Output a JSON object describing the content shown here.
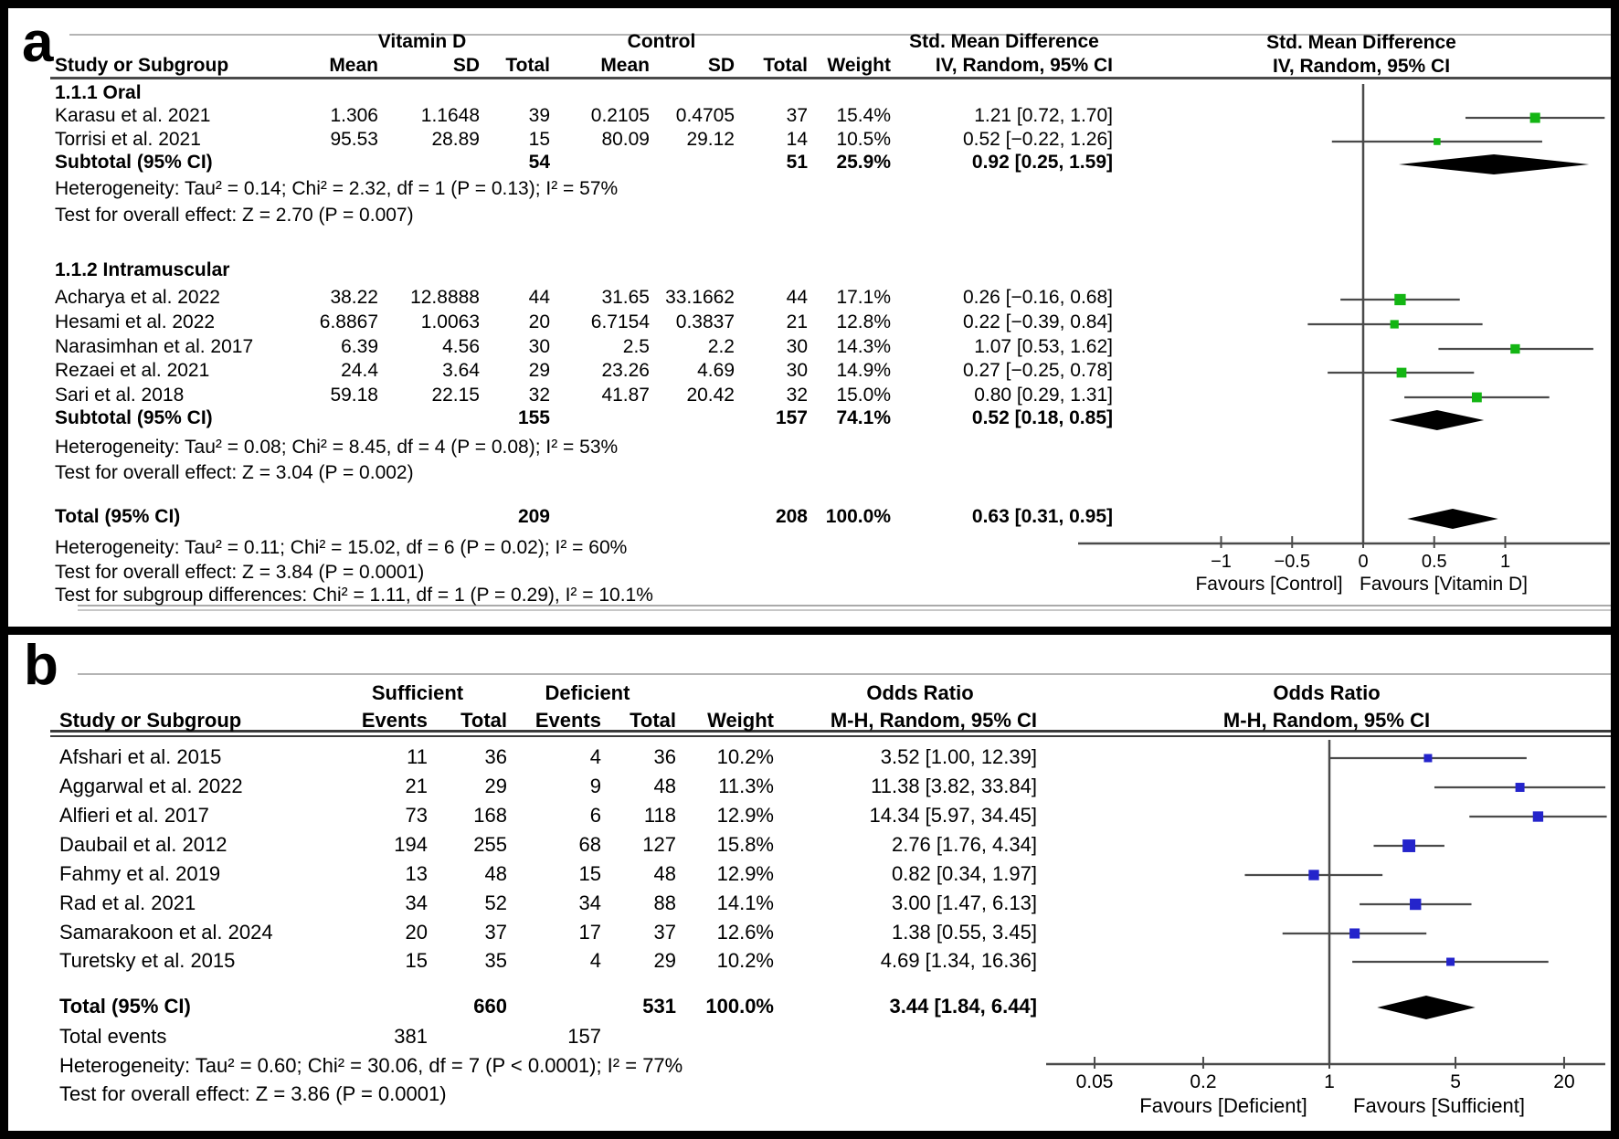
{
  "panel_a": {
    "label": "a",
    "group_headers": [
      "Vitamin D",
      "Control",
      "Std. Mean Difference"
    ],
    "col_headers": [
      "Study or Subgroup",
      "Mean",
      "SD",
      "Total",
      "Mean",
      "SD",
      "Total",
      "Weight",
      "IV, Random, 95% CI"
    ],
    "plot_header": {
      "line1": "Std. Mean Difference",
      "line2": "IV, Random, 95% CI"
    },
    "rows": [
      {
        "type": "group",
        "cells": [
          "1.1.1 Oral"
        ]
      },
      {
        "type": "study",
        "cells": [
          "Karasu et al. 2021",
          "1.306",
          "1.1648",
          "39",
          "0.2105",
          "0.4705",
          "37",
          "15.4%",
          "1.21 [0.72, 1.70]"
        ]
      },
      {
        "type": "study",
        "cells": [
          "Torrisi et al. 2021",
          "95.53",
          "28.89",
          "15",
          "80.09",
          "29.12",
          "14",
          "10.5%",
          "0.52 [−0.22, 1.26]"
        ]
      },
      {
        "type": "subtotal",
        "cells": [
          "Subtotal (95% CI)",
          "",
          "",
          "54",
          "",
          "",
          "51",
          "25.9%",
          "0.92 [0.25, 1.59]"
        ]
      },
      {
        "type": "note",
        "cells": [
          "Heterogeneity: Tau² = 0.14; Chi² = 2.32, df = 1 (P = 0.13); I² = 57%"
        ]
      },
      {
        "type": "note",
        "cells": [
          "Test for overall effect: Z = 2.70 (P = 0.007)"
        ]
      },
      {
        "type": "group",
        "cells": [
          "1.1.2 Intramuscular"
        ]
      },
      {
        "type": "study",
        "cells": [
          "Acharya et al. 2022",
          "38.22",
          "12.8888",
          "44",
          "31.65",
          "33.1662",
          "44",
          "17.1%",
          "0.26 [−0.16, 0.68]"
        ]
      },
      {
        "type": "study",
        "cells": [
          "Hesami et al. 2022",
          "6.8867",
          "1.0063",
          "20",
          "6.7154",
          "0.3837",
          "21",
          "12.8%",
          "0.22 [−0.39, 0.84]"
        ]
      },
      {
        "type": "study",
        "cells": [
          "Narasimhan et al. 2017",
          "6.39",
          "4.56",
          "30",
          "2.5",
          "2.2",
          "30",
          "14.3%",
          "1.07 [0.53, 1.62]"
        ]
      },
      {
        "type": "study",
        "cells": [
          "Rezaei et al. 2021",
          "24.4",
          "3.64",
          "29",
          "23.26",
          "4.69",
          "30",
          "14.9%",
          "0.27 [−0.25, 0.78]"
        ]
      },
      {
        "type": "study",
        "cells": [
          "Sari et al. 2018",
          "59.18",
          "22.15",
          "32",
          "41.87",
          "20.42",
          "32",
          "15.0%",
          "0.80 [0.29, 1.31]"
        ]
      },
      {
        "type": "subtotal",
        "cells": [
          "Subtotal (95% CI)",
          "",
          "",
          "155",
          "",
          "",
          "157",
          "74.1%",
          "0.52 [0.18, 0.85]"
        ]
      },
      {
        "type": "note",
        "cells": [
          "Heterogeneity: Tau² = 0.08; Chi² = 8.45, df = 4 (P = 0.08); I² = 53%"
        ]
      },
      {
        "type": "note",
        "cells": [
          "Test for overall effect: Z = 3.04 (P = 0.002)"
        ]
      },
      {
        "type": "total",
        "cells": [
          "Total (95% CI)",
          "",
          "",
          "209",
          "",
          "",
          "208",
          "100.0%",
          "0.63 [0.31, 0.95]"
        ]
      },
      {
        "type": "note",
        "cells": [
          "Heterogeneity: Tau² = 0.11; Chi² = 15.02, df = 6 (P = 0.02); I² = 60%"
        ]
      },
      {
        "type": "note",
        "cells": [
          "Test for overall effect: Z = 3.84 (P = 0.0001)"
        ]
      },
      {
        "type": "note",
        "cells": [
          "Test for subgroup differences: Chi² = 1.11, df = 1 (P = 0.29), I² = 10.1%"
        ]
      }
    ]
  },
  "panel_b": {
    "label": "b",
    "group_headers": [
      "Sufficient",
      "Deficient",
      "Odds Ratio"
    ],
    "col_headers": [
      "Study or Subgroup",
      "Events",
      "Total",
      "Events",
      "Total",
      "Weight",
      "M-H, Random, 95% CI"
    ],
    "plot_header": {
      "line1": "Odds Ratio",
      "line2": "M-H, Random, 95% CI"
    },
    "rows": [
      {
        "type": "study",
        "cells": [
          "Afshari et al. 2015",
          "11",
          "36",
          "4",
          "36",
          "10.2%",
          "3.52 [1.00, 12.39]"
        ]
      },
      {
        "type": "study",
        "cells": [
          "Aggarwal et al. 2022",
          "21",
          "29",
          "9",
          "48",
          "11.3%",
          "11.38 [3.82, 33.84]"
        ]
      },
      {
        "type": "study",
        "cells": [
          "Alfieri et al. 2017",
          "73",
          "168",
          "6",
          "118",
          "12.9%",
          "14.34 [5.97, 34.45]"
        ]
      },
      {
        "type": "study",
        "cells": [
          "Daubail et al. 2012",
          "194",
          "255",
          "68",
          "127",
          "15.8%",
          "2.76 [1.76, 4.34]"
        ]
      },
      {
        "type": "study",
        "cells": [
          "Fahmy et al. 2019",
          "13",
          "48",
          "15",
          "48",
          "12.9%",
          "0.82 [0.34, 1.97]"
        ]
      },
      {
        "type": "study",
        "cells": [
          "Rad et al. 2021",
          "34",
          "52",
          "34",
          "88",
          "14.1%",
          "3.00 [1.47, 6.13]"
        ]
      },
      {
        "type": "study",
        "cells": [
          "Samarakoon et al. 2024",
          "20",
          "37",
          "17",
          "37",
          "12.6%",
          "1.38 [0.55, 3.45]"
        ]
      },
      {
        "type": "study",
        "cells": [
          "Turetsky et al. 2015",
          "15",
          "35",
          "4",
          "29",
          "10.2%",
          "4.69 [1.34, 16.36]"
        ]
      },
      {
        "type": "total",
        "cells": [
          "Total (95% CI)",
          "",
          "660",
          "",
          "531",
          "100.0%",
          "3.44 [1.84, 6.44]"
        ]
      },
      {
        "type": "note",
        "cells": [
          "Total events",
          "381",
          "",
          "157",
          "",
          "",
          ""
        ]
      },
      {
        "type": "note",
        "cells": [
          "Heterogeneity: Tau² = 0.60; Chi² = 30.06, df = 7 (P < 0.0001); I² = 77%"
        ]
      },
      {
        "type": "note",
        "cells": [
          "Test for overall effect: Z = 3.86 (P = 0.0001)"
        ]
      }
    ]
  },
  "chart_data": [
    {
      "type": "forest",
      "panel": "a",
      "effect_label": "Std. Mean Difference, IV, Random, 95% CI",
      "scale": "linear",
      "xlim": [
        -2.0,
        1.75
      ],
      "axis_ticks": [
        -1,
        -0.5,
        0,
        0.5,
        1
      ],
      "axis_tick_labels": [
        "−1",
        "−0.5",
        "0",
        "0.5",
        "1"
      ],
      "null_value": 0,
      "favours_left": "Favours [Control]",
      "favours_right": "Favours [Vitamin D]",
      "marker_color": "#13b513",
      "groups": [
        {
          "name": "1.1.1 Oral",
          "studies": [
            {
              "label": "Karasu et al. 2021",
              "est": 1.21,
              "lo": 0.72,
              "hi": 1.7,
              "weight": 15.4
            },
            {
              "label": "Torrisi et al. 2021",
              "est": 0.52,
              "lo": -0.22,
              "hi": 1.26,
              "weight": 10.5
            }
          ],
          "subtotal": {
            "est": 0.92,
            "lo": 0.25,
            "hi": 1.59
          }
        },
        {
          "name": "1.1.2 Intramuscular",
          "studies": [
            {
              "label": "Acharya et al. 2022",
              "est": 0.26,
              "lo": -0.16,
              "hi": 0.68,
              "weight": 17.1
            },
            {
              "label": "Hesami et al. 2022",
              "est": 0.22,
              "lo": -0.39,
              "hi": 0.84,
              "weight": 12.8
            },
            {
              "label": "Narasimhan et al. 2017",
              "est": 1.07,
              "lo": 0.53,
              "hi": 1.62,
              "weight": 14.3
            },
            {
              "label": "Rezaei et al. 2021",
              "est": 0.27,
              "lo": -0.25,
              "hi": 0.78,
              "weight": 14.9
            },
            {
              "label": "Sari et al. 2018",
              "est": 0.8,
              "lo": 0.29,
              "hi": 1.31,
              "weight": 15.0
            }
          ],
          "subtotal": {
            "est": 0.52,
            "lo": 0.18,
            "hi": 0.85
          }
        }
      ],
      "total": {
        "est": 0.63,
        "lo": 0.31,
        "hi": 0.95
      }
    },
    {
      "type": "forest",
      "panel": "b",
      "effect_label": "Odds Ratio, M-H, Random, 95% CI",
      "scale": "log",
      "xlim": [
        0.03,
        34
      ],
      "axis_ticks": [
        0.05,
        0.2,
        1,
        5,
        20
      ],
      "axis_tick_labels": [
        "0.05",
        "0.2",
        "1",
        "5",
        "20"
      ],
      "null_value": 1,
      "favours_left": "Favours [Deficient]",
      "favours_right": "Favours [Sufficient]",
      "marker_color": "#2424cb",
      "studies": [
        {
          "label": "Afshari et al. 2015",
          "est": 3.52,
          "lo": 1.0,
          "hi": 12.39,
          "weight": 10.2
        },
        {
          "label": "Aggarwal et al. 2022",
          "est": 11.38,
          "lo": 3.82,
          "hi": 33.84,
          "weight": 11.3
        },
        {
          "label": "Alfieri et al. 2017",
          "est": 14.34,
          "lo": 5.97,
          "hi": 34.45,
          "weight": 12.9
        },
        {
          "label": "Daubail et al. 2012",
          "est": 2.76,
          "lo": 1.76,
          "hi": 4.34,
          "weight": 15.8
        },
        {
          "label": "Fahmy et al. 2019",
          "est": 0.82,
          "lo": 0.34,
          "hi": 1.97,
          "weight": 12.9
        },
        {
          "label": "Rad et al. 2021",
          "est": 3.0,
          "lo": 1.47,
          "hi": 6.13,
          "weight": 14.1
        },
        {
          "label": "Samarakoon et al. 2024",
          "est": 1.38,
          "lo": 0.55,
          "hi": 3.45,
          "weight": 12.6
        },
        {
          "label": "Turetsky et al. 2015",
          "est": 4.69,
          "lo": 1.34,
          "hi": 16.36,
          "weight": 10.2
        }
      ],
      "total": {
        "est": 3.44,
        "lo": 1.84,
        "hi": 6.44
      }
    }
  ]
}
